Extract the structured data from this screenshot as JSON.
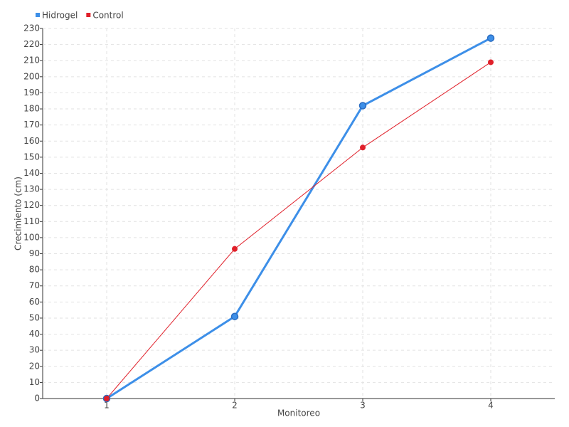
{
  "chart_data": {
    "type": "line",
    "x_label": "Monitoreo",
    "y_label": "Crecimiento (cm)",
    "categories": [
      "1",
      "2",
      "3",
      "4"
    ],
    "series": [
      {
        "name": "Hidrogel",
        "color": "#3d8fe8",
        "values": [
          0,
          51,
          182,
          224
        ]
      },
      {
        "name": "Control",
        "color": "#e0202a",
        "values": [
          0,
          93,
          156,
          209
        ]
      }
    ],
    "ylim": [
      0,
      230
    ],
    "yticks": [
      0,
      10,
      20,
      30,
      40,
      50,
      60,
      70,
      80,
      90,
      100,
      110,
      120,
      130,
      140,
      150,
      160,
      170,
      180,
      190,
      200,
      210,
      220,
      230
    ],
    "grid": true,
    "legend": "top-left"
  }
}
